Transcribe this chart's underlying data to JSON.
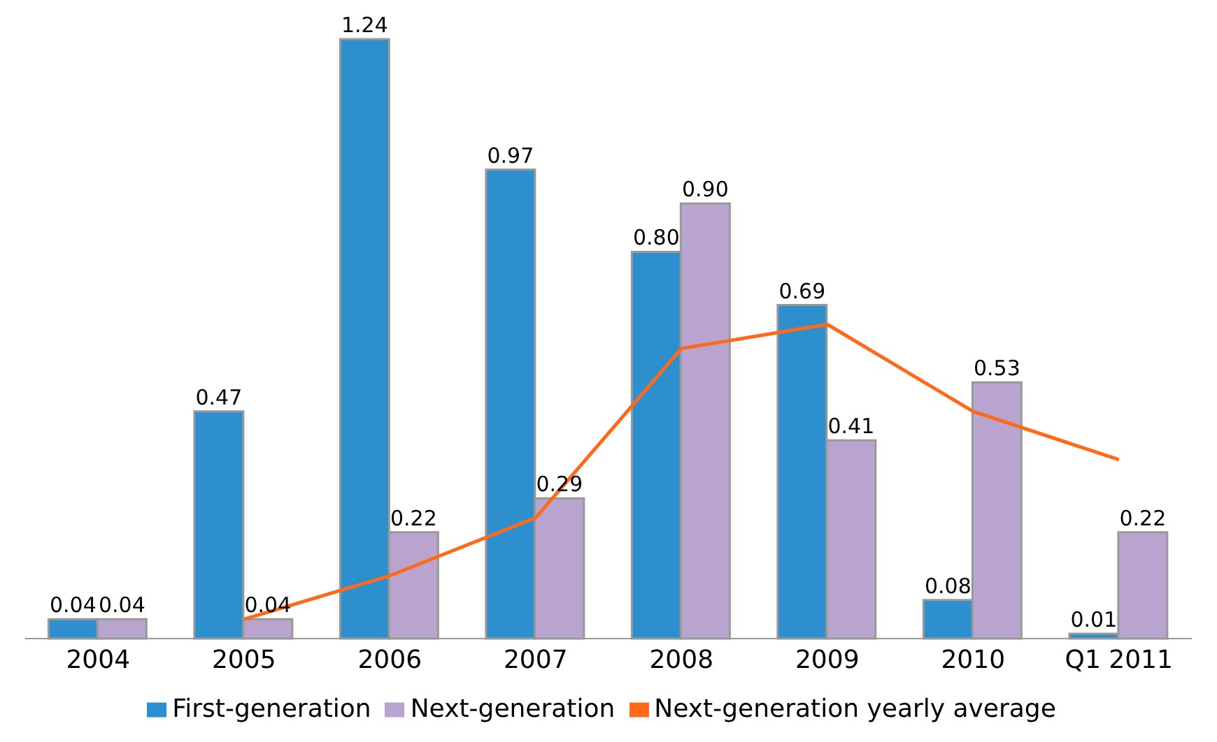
{
  "chart_data": {
    "type": "bar",
    "categories": [
      "2004",
      "2005",
      "2006",
      "2007",
      "2008",
      "2009",
      "2010",
      "Q1 2011"
    ],
    "series": [
      {
        "name": "First-generation",
        "color": "#2e8fcf",
        "values": [
          0.04,
          0.47,
          1.24,
          0.97,
          0.8,
          0.69,
          0.08,
          0.01
        ],
        "value_labels": [
          "0.04",
          "0.47",
          "1.24",
          "0.97",
          "0.80",
          "0.69",
          "0.08",
          "0.01"
        ]
      },
      {
        "name": "Next-generation",
        "color": "#b9a3cf",
        "values": [
          0.04,
          0.04,
          0.22,
          0.29,
          0.9,
          0.41,
          0.53,
          0.22
        ],
        "value_labels": [
          "0.04",
          "0.04",
          "0.22",
          "0.29",
          "0.90",
          "0.41",
          "0.53",
          "0.22"
        ]
      },
      {
        "name": "Next-generation yearly average",
        "type": "line",
        "color": "#ff6a1a",
        "values": [
          null,
          0.04,
          0.13,
          0.25,
          0.6,
          0.65,
          0.47,
          0.37
        ]
      }
    ],
    "legend": "bottom",
    "grid": false,
    "marker": "none",
    "tick_labels": "x"
  }
}
